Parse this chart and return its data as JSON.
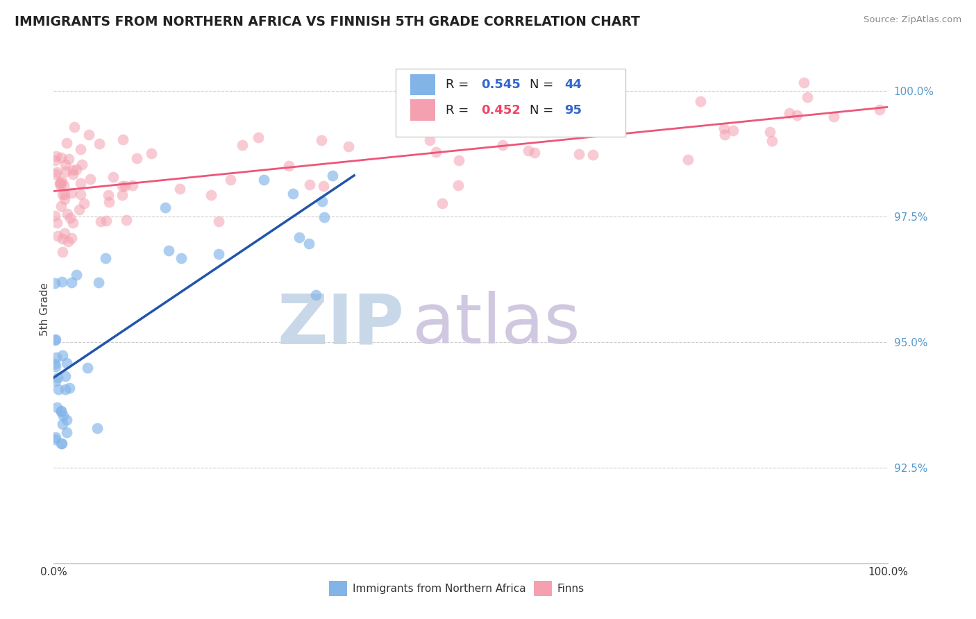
{
  "title": "IMMIGRANTS FROM NORTHERN AFRICA VS FINNISH 5TH GRADE CORRELATION CHART",
  "source_text": "Source: ZipAtlas.com",
  "ylabel": "5th Grade",
  "xlim": [
    0.0,
    1.0
  ],
  "ylim": [
    0.906,
    1.007
  ],
  "right_yticks": [
    0.925,
    0.95,
    0.975,
    1.0
  ],
  "right_yticklabels": [
    "92.5%",
    "95.0%",
    "97.5%",
    "100.0%"
  ],
  "legend_label1": "Immigrants from Northern Africa",
  "legend_label2": "Finns",
  "R1": 0.545,
  "N1": 44,
  "R2": 0.452,
  "N2": 95,
  "blue_color": "#82B4E8",
  "pink_color": "#F4A0B0",
  "blue_line_color": "#2255AA",
  "pink_line_color": "#EE5577",
  "watermark_zip_color": "#C8D8E8",
  "watermark_atlas_color": "#D0C8E0",
  "blue_seed": 101,
  "pink_seed": 202
}
